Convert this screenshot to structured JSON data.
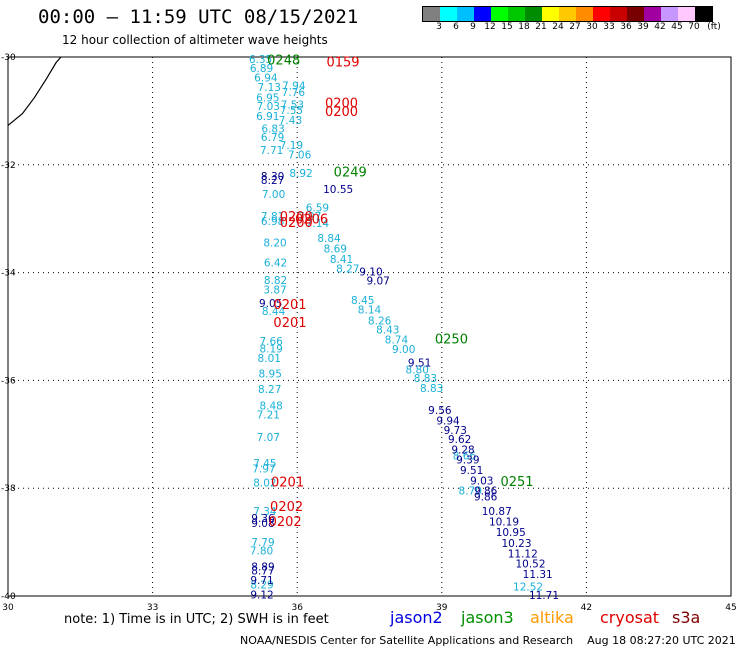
{
  "title": "00:00 – 11:59 UTC 08/15/2021",
  "subtitle": "12 hour collection of altimeter wave heights",
  "colorbar": {
    "swatches": [
      "#808080",
      "#00ffff",
      "#00bfff",
      "#0000ff",
      "#00ff00",
      "#00c800",
      "#008c00",
      "#ffff00",
      "#ffc800",
      "#ff8c00",
      "#ff0000",
      "#c80000",
      "#780000",
      "#a000a0",
      "#c896ff",
      "#ffc8ff",
      "#000000"
    ],
    "labels": [
      "3",
      "6",
      "9",
      "12",
      "15",
      "18",
      "21",
      "24",
      "27",
      "30",
      "33",
      "36",
      "39",
      "42",
      "45",
      "70",
      "(ft)"
    ]
  },
  "map": {
    "x_ticks": [
      "30",
      "33",
      "36",
      "39",
      "42",
      "45"
    ],
    "y_ticks": [
      "-30",
      "-32",
      "-34",
      "-36",
      "-38",
      "-40"
    ],
    "lon_range": [
      30,
      45
    ],
    "lat_range": [
      -40,
      -30
    ],
    "coast_color": "#000000",
    "tracks": [
      {
        "name": "jason3-lightblue",
        "color": "#1ab0d8",
        "points": [
          {
            "lon": 35.24,
            "lat": -30.04,
            "v": "6.35"
          },
          {
            "lon": 35.26,
            "lat": -30.2,
            "v": "6.89"
          },
          {
            "lon": 35.35,
            "lat": -30.38,
            "v": "6.94"
          },
          {
            "lon": 35.42,
            "lat": -30.56,
            "v": "7.13"
          },
          {
            "lon": 35.39,
            "lat": -30.75,
            "v": "6.95"
          },
          {
            "lon": 35.4,
            "lat": -30.91,
            "v": "7.03"
          },
          {
            "lon": 35.39,
            "lat": -31.09,
            "v": "6.91"
          },
          {
            "lon": 35.5,
            "lat": -31.33,
            "v": "6.83"
          },
          {
            "lon": 35.49,
            "lat": -31.48,
            "v": "6.79"
          },
          {
            "lon": 35.47,
            "lat": -31.73,
            "v": "7.71"
          },
          {
            "lon": 35.51,
            "lat": -32.54,
            "v": "7.00"
          },
          {
            "lon": 35.49,
            "lat": -32.95,
            "v": "7.81"
          },
          {
            "lon": 35.49,
            "lat": -33.04,
            "v": "6.98"
          },
          {
            "lon": 35.54,
            "lat": -33.44,
            "v": "8.20"
          },
          {
            "lon": 35.55,
            "lat": -33.81,
            "v": "6.42"
          },
          {
            "lon": 35.55,
            "lat": -34.14,
            "v": "8.82"
          },
          {
            "lon": 35.54,
            "lat": -34.31,
            "v": "3.87"
          },
          {
            "lon": 35.51,
            "lat": -34.71,
            "v": "8.44"
          },
          {
            "lon": 35.46,
            "lat": -35.27,
            "v": "7.66"
          },
          {
            "lon": 35.46,
            "lat": -35.41,
            "v": "8.19"
          },
          {
            "lon": 35.42,
            "lat": -35.58,
            "v": "8.01"
          },
          {
            "lon": 35.44,
            "lat": -35.87,
            "v": "8.95"
          },
          {
            "lon": 35.43,
            "lat": -36.16,
            "v": "8.27"
          },
          {
            "lon": 35.46,
            "lat": -36.47,
            "v": "8.48"
          },
          {
            "lon": 35.4,
            "lat": -36.63,
            "v": "7.21"
          },
          {
            "lon": 35.4,
            "lat": -37.05,
            "v": "7.07"
          },
          {
            "lon": 35.33,
            "lat": -37.53,
            "v": "7.45"
          },
          {
            "lon": 35.31,
            "lat": -37.63,
            "v": "7.97"
          },
          {
            "lon": 35.33,
            "lat": -37.89,
            "v": "8.02"
          },
          {
            "lon": 35.33,
            "lat": -38.42,
            "v": "7.34"
          },
          {
            "lon": 35.29,
            "lat": -39.0,
            "v": "7.79"
          },
          {
            "lon": 35.26,
            "lat": -39.16,
            "v": "7.80"
          },
          {
            "lon": 35.27,
            "lat": -39.79,
            "v": "8.29"
          },
          {
            "lon": 35.93,
            "lat": -30.53,
            "v": "7.94"
          },
          {
            "lon": 35.92,
            "lat": -30.65,
            "v": "7.76"
          },
          {
            "lon": 35.9,
            "lat": -30.88,
            "v": "7.53"
          },
          {
            "lon": 35.88,
            "lat": -30.98,
            "v": "7.55"
          },
          {
            "lon": 35.86,
            "lat": -31.17,
            "v": "7.43"
          },
          {
            "lon": 35.88,
            "lat": -31.63,
            "v": "7.19"
          },
          {
            "lon": 36.05,
            "lat": -31.81,
            "v": "7.06"
          },
          {
            "lon": 36.08,
            "lat": -32.15,
            "v": "8.92"
          },
          {
            "lon": 36.42,
            "lat": -32.79,
            "v": "6.59"
          },
          {
            "lon": 36.26,
            "lat": -32.95,
            "v": "7.97"
          },
          {
            "lon": 36.42,
            "lat": -33.08,
            "v": "7.14"
          },
          {
            "lon": 36.66,
            "lat": -33.36,
            "v": "8.84"
          },
          {
            "lon": 36.79,
            "lat": -33.55,
            "v": "8.69"
          },
          {
            "lon": 36.92,
            "lat": -33.75,
            "v": "8.41"
          },
          {
            "lon": 37.05,
            "lat": -33.92,
            "v": "8.27"
          },
          {
            "lon": 37.36,
            "lat": -34.51,
            "v": "8.45"
          },
          {
            "lon": 37.5,
            "lat": -34.68,
            "v": "8.14"
          },
          {
            "lon": 37.71,
            "lat": -34.89,
            "v": "8.26"
          },
          {
            "lon": 37.88,
            "lat": -35.06,
            "v": "8.43"
          },
          {
            "lon": 38.06,
            "lat": -35.24,
            "v": "8.74"
          },
          {
            "lon": 38.21,
            "lat": -35.42,
            "v": "9.00"
          },
          {
            "lon": 38.49,
            "lat": -35.8,
            "v": "8.80"
          },
          {
            "lon": 38.66,
            "lat": -35.96,
            "v": "8.83"
          },
          {
            "lon": 38.79,
            "lat": -36.14,
            "v": "8.83"
          },
          {
            "lon": 39.47,
            "lat": -37.39,
            "v": "8.66"
          },
          {
            "lon": 39.59,
            "lat": -38.04,
            "v": "8.70"
          },
          {
            "lon": 40.79,
            "lat": -39.82,
            "v": "12.52"
          }
        ]
      },
      {
        "name": "jason2-navy",
        "color": "#00008b",
        "points": [
          {
            "lon": 35.49,
            "lat": -32.21,
            "v": "8.30"
          },
          {
            "lon": 35.49,
            "lat": -32.28,
            "v": "8.27"
          },
          {
            "lon": 35.45,
            "lat": -34.56,
            "v": "9.05"
          },
          {
            "lon": 35.29,
            "lat": -38.55,
            "v": "9.36"
          },
          {
            "lon": 35.29,
            "lat": -38.65,
            "v": "9.08"
          },
          {
            "lon": 35.29,
            "lat": -39.45,
            "v": "8.89"
          },
          {
            "lon": 35.29,
            "lat": -39.53,
            "v": "8.77"
          },
          {
            "lon": 35.27,
            "lat": -39.7,
            "v": "9.71"
          },
          {
            "lon": 35.27,
            "lat": -39.97,
            "v": "9.12"
          },
          {
            "lon": 36.85,
            "lat": -32.45,
            "v": "10.55"
          },
          {
            "lon": 37.53,
            "lat": -33.98,
            "v": "9.10"
          },
          {
            "lon": 37.68,
            "lat": -34.15,
            "v": "9.07"
          },
          {
            "lon": 38.54,
            "lat": -35.67,
            "v": "9.51"
          },
          {
            "lon": 38.96,
            "lat": -36.55,
            "v": "9.56"
          },
          {
            "lon": 39.13,
            "lat": -36.74,
            "v": "9.94"
          },
          {
            "lon": 39.28,
            "lat": -36.92,
            "v": "9.73"
          },
          {
            "lon": 39.37,
            "lat": -37.09,
            "v": "9.62"
          },
          {
            "lon": 39.44,
            "lat": -37.28,
            "v": "9.28"
          },
          {
            "lon": 39.54,
            "lat": -37.47,
            "v": "9.39"
          },
          {
            "lon": 39.62,
            "lat": -37.66,
            "v": "9.51"
          },
          {
            "lon": 39.83,
            "lat": -37.86,
            "v": "9.03"
          },
          {
            "lon": 39.91,
            "lat": -38.04,
            "v": "9.86"
          },
          {
            "lon": 39.91,
            "lat": -38.15,
            "v": "9.86"
          },
          {
            "lon": 40.14,
            "lat": -38.42,
            "v": "10.87"
          },
          {
            "lon": 40.29,
            "lat": -38.62,
            "v": "10.19"
          },
          {
            "lon": 40.43,
            "lat": -38.81,
            "v": "10.95"
          },
          {
            "lon": 40.55,
            "lat": -39.02,
            "v": "10.23"
          },
          {
            "lon": 40.68,
            "lat": -39.21,
            "v": "11.12"
          },
          {
            "lon": 40.84,
            "lat": -39.4,
            "v": "10.52"
          },
          {
            "lon": 40.99,
            "lat": -39.59,
            "v": "11.31"
          },
          {
            "lon": 41.12,
            "lat": -39.98,
            "v": "11.71"
          }
        ]
      }
    ],
    "time_labels": [
      {
        "lon": 35.72,
        "lat": -30.05,
        "t": "0248",
        "color": "#008000"
      },
      {
        "lon": 36.95,
        "lat": -30.08,
        "t": "0159",
        "color": "#e00000"
      },
      {
        "lon": 36.92,
        "lat": -30.84,
        "t": "0200",
        "color": "#e00000"
      },
      {
        "lon": 36.92,
        "lat": -31.0,
        "t": "0200",
        "color": "#e00000"
      },
      {
        "lon": 37.1,
        "lat": -32.12,
        "t": "0249",
        "color": "#008000"
      },
      {
        "lon": 35.98,
        "lat": -32.95,
        "t": "0200",
        "color": "#e00000"
      },
      {
        "lon": 35.98,
        "lat": -33.06,
        "t": "0200",
        "color": "#e00000"
      },
      {
        "lon": 36.3,
        "lat": -33.0,
        "t": "0206",
        "color": "#e00000"
      },
      {
        "lon": 35.85,
        "lat": -34.58,
        "t": "0201",
        "color": "#e00000"
      },
      {
        "lon": 35.85,
        "lat": -34.92,
        "t": "0201",
        "color": "#e00000"
      },
      {
        "lon": 39.2,
        "lat": -35.22,
        "t": "0250",
        "color": "#008000"
      },
      {
        "lon": 35.8,
        "lat": -37.88,
        "t": "0201",
        "color": "#e00000"
      },
      {
        "lon": 35.78,
        "lat": -38.33,
        "t": "0202",
        "color": "#e00000"
      },
      {
        "lon": 35.75,
        "lat": -38.61,
        "t": "0202",
        "color": "#e00000"
      },
      {
        "lon": 40.56,
        "lat": -37.87,
        "t": "0251",
        "color": "#008000"
      }
    ]
  },
  "note": "note:  1) Time is in UTC; 2) SWH is in feet",
  "satellites": [
    {
      "name": "jason2",
      "color": "#0000e0"
    },
    {
      "name": "jason3",
      "color": "#009000"
    },
    {
      "name": "altika",
      "color": "#ff9900"
    },
    {
      "name": "cryosat",
      "color": "#e00000"
    },
    {
      "name": "s3a",
      "color": "#800000"
    }
  ],
  "credit": "NOAA/NESDIS Center for Satellite Applications and Research    Aug 18 08:27:20 UTC 2021"
}
